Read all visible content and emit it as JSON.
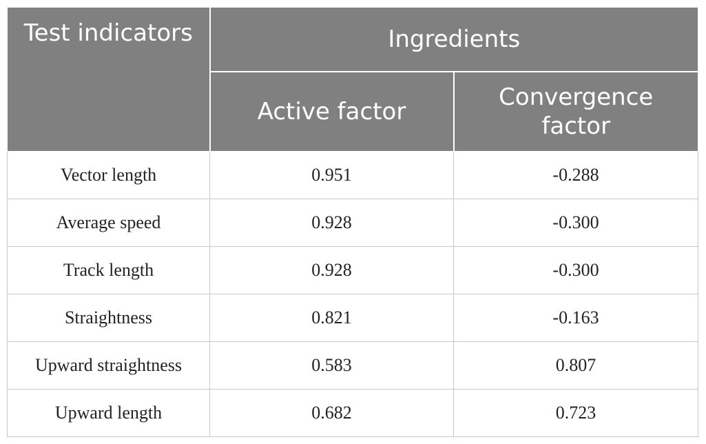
{
  "header": {
    "test_indicators": "Test indicators",
    "ingredients": "Ingredients",
    "active_factor": "Active factor",
    "convergence_factor": "Convergence factor"
  },
  "rows": [
    {
      "indicator": "Vector length",
      "active": "0.951",
      "convergence": "-0.288"
    },
    {
      "indicator": "Average speed",
      "active": "0.928",
      "convergence": "-0.300"
    },
    {
      "indicator": "Track length",
      "active": "0.928",
      "convergence": "-0.300"
    },
    {
      "indicator": "Straightness",
      "active": "0.821",
      "convergence": "-0.163"
    },
    {
      "indicator": "Upward straightness",
      "active": "0.583",
      "convergence": "0.807"
    },
    {
      "indicator": "Upward length",
      "active": "0.682",
      "convergence": "0.723"
    }
  ],
  "colors": {
    "header_bg": "#808080",
    "header_text": "#ffffff",
    "grid_line": "#c8c8c8"
  }
}
